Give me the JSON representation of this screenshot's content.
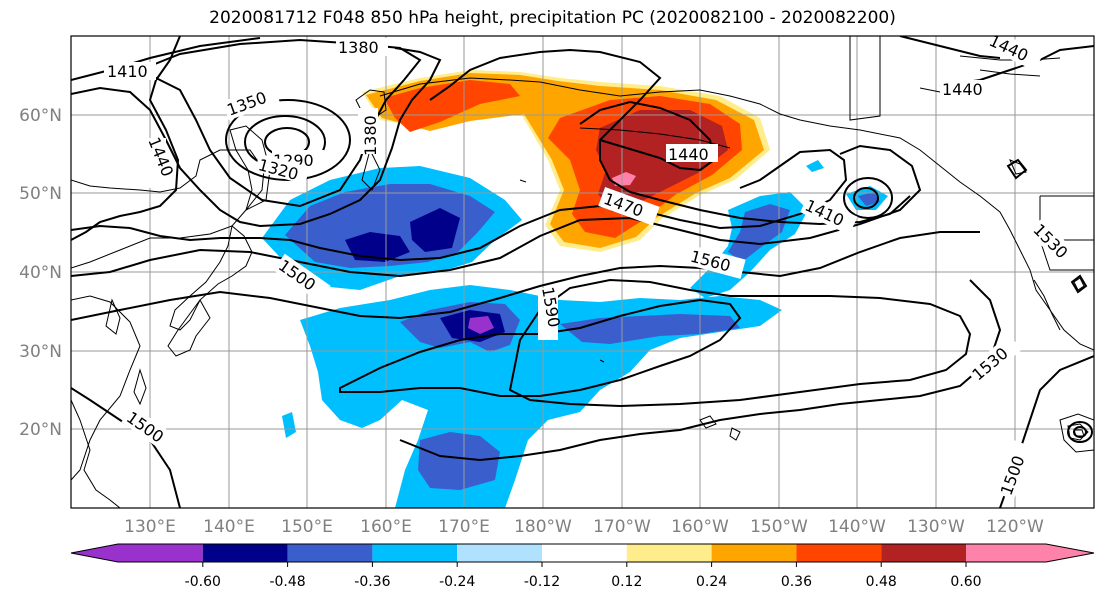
{
  "title": "2020081712 F048 850 hPa height, precipitation PC (2020082100 - 2020082200)",
  "lat_labels": [
    "60°N",
    "50°N",
    "40°N",
    "30°N",
    "20°N"
  ],
  "lon_labels": [
    "130°E",
    "140°E",
    "150°E",
    "160°E",
    "170°E",
    "180°W",
    "170°W",
    "160°W",
    "150°W",
    "140°W",
    "130°W",
    "120°W"
  ],
  "contour_labels": [
    "1380",
    "1410",
    "1350",
    "1380",
    "1440",
    "1290",
    "1320",
    "1440",
    "1470",
    "1410",
    "1440",
    "1440",
    "1500",
    "1560",
    "1590",
    "1530",
    "1530",
    "1500",
    "1500"
  ],
  "colorbar": {
    "colors": [
      "#9932cc",
      "#00008b",
      "#3a5fcd",
      "#00bfff",
      "#b0e2ff",
      "#ffffff",
      "#ffec8b",
      "#ffa500",
      "#ff4500",
      "#b22222",
      "#ff82ab"
    ],
    "tick_labels": [
      "-0.60",
      "-0.48",
      "-0.36",
      "-0.24",
      "-0.12",
      "0.12",
      "0.24",
      "0.36",
      "0.48",
      "0.60"
    ]
  },
  "fill_colors": {
    "blue_light": "#00bfff",
    "blue_mid": "#3a5fcd",
    "blue_dark": "#00008b",
    "purple": "#9932cc",
    "orange": "#ffa500",
    "red_orange": "#ff4500",
    "dark_red": "#b22222",
    "pink": "#ff82ab"
  }
}
